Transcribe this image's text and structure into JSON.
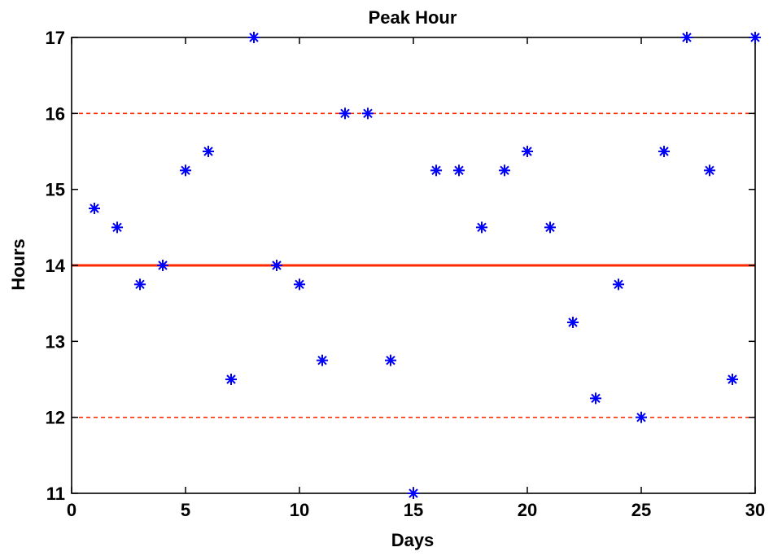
{
  "chart_data": {
    "type": "scatter",
    "title": "Peak Hour",
    "xlabel": "Days",
    "ylabel": "Hours",
    "xlim": [
      0,
      30
    ],
    "ylim": [
      11,
      17
    ],
    "xticks": [
      0,
      5,
      10,
      15,
      20,
      25,
      30
    ],
    "yticks": [
      11,
      12,
      13,
      14,
      15,
      16,
      17
    ],
    "grid": false,
    "series": [
      {
        "marker": "asterisk",
        "color": "#0000ff",
        "points": [
          {
            "x": 1,
            "y": 14.75
          },
          {
            "x": 2,
            "y": 14.5
          },
          {
            "x": 3,
            "y": 13.75
          },
          {
            "x": 4,
            "y": 14.0
          },
          {
            "x": 5,
            "y": 15.25
          },
          {
            "x": 6,
            "y": 15.5
          },
          {
            "x": 7,
            "y": 12.5
          },
          {
            "x": 8,
            "y": 17.0
          },
          {
            "x": 9,
            "y": 14.0
          },
          {
            "x": 10,
            "y": 13.75
          },
          {
            "x": 11,
            "y": 12.75
          },
          {
            "x": 12,
            "y": 16.0
          },
          {
            "x": 13,
            "y": 16.0
          },
          {
            "x": 14,
            "y": 12.75
          },
          {
            "x": 15,
            "y": 11.0
          },
          {
            "x": 16,
            "y": 15.25
          },
          {
            "x": 17,
            "y": 15.25
          },
          {
            "x": 18,
            "y": 14.5
          },
          {
            "x": 19,
            "y": 15.25
          },
          {
            "x": 20,
            "y": 15.5
          },
          {
            "x": 21,
            "y": 14.5
          },
          {
            "x": 22,
            "y": 13.25
          },
          {
            "x": 23,
            "y": 12.25
          },
          {
            "x": 24,
            "y": 13.75
          },
          {
            "x": 25,
            "y": 12.0
          },
          {
            "x": 26,
            "y": 15.5
          },
          {
            "x": 27,
            "y": 17.0
          },
          {
            "x": 28,
            "y": 15.25
          },
          {
            "x": 29,
            "y": 12.5
          },
          {
            "x": 30,
            "y": 17.0
          }
        ]
      }
    ],
    "reference_lines": [
      {
        "y": 14,
        "style": "solid",
        "color": "#ff2a00"
      },
      {
        "y": 16,
        "style": "dashed",
        "color": "#ff2a00"
      },
      {
        "y": 12,
        "style": "dashed",
        "color": "#ff2a00"
      }
    ]
  }
}
